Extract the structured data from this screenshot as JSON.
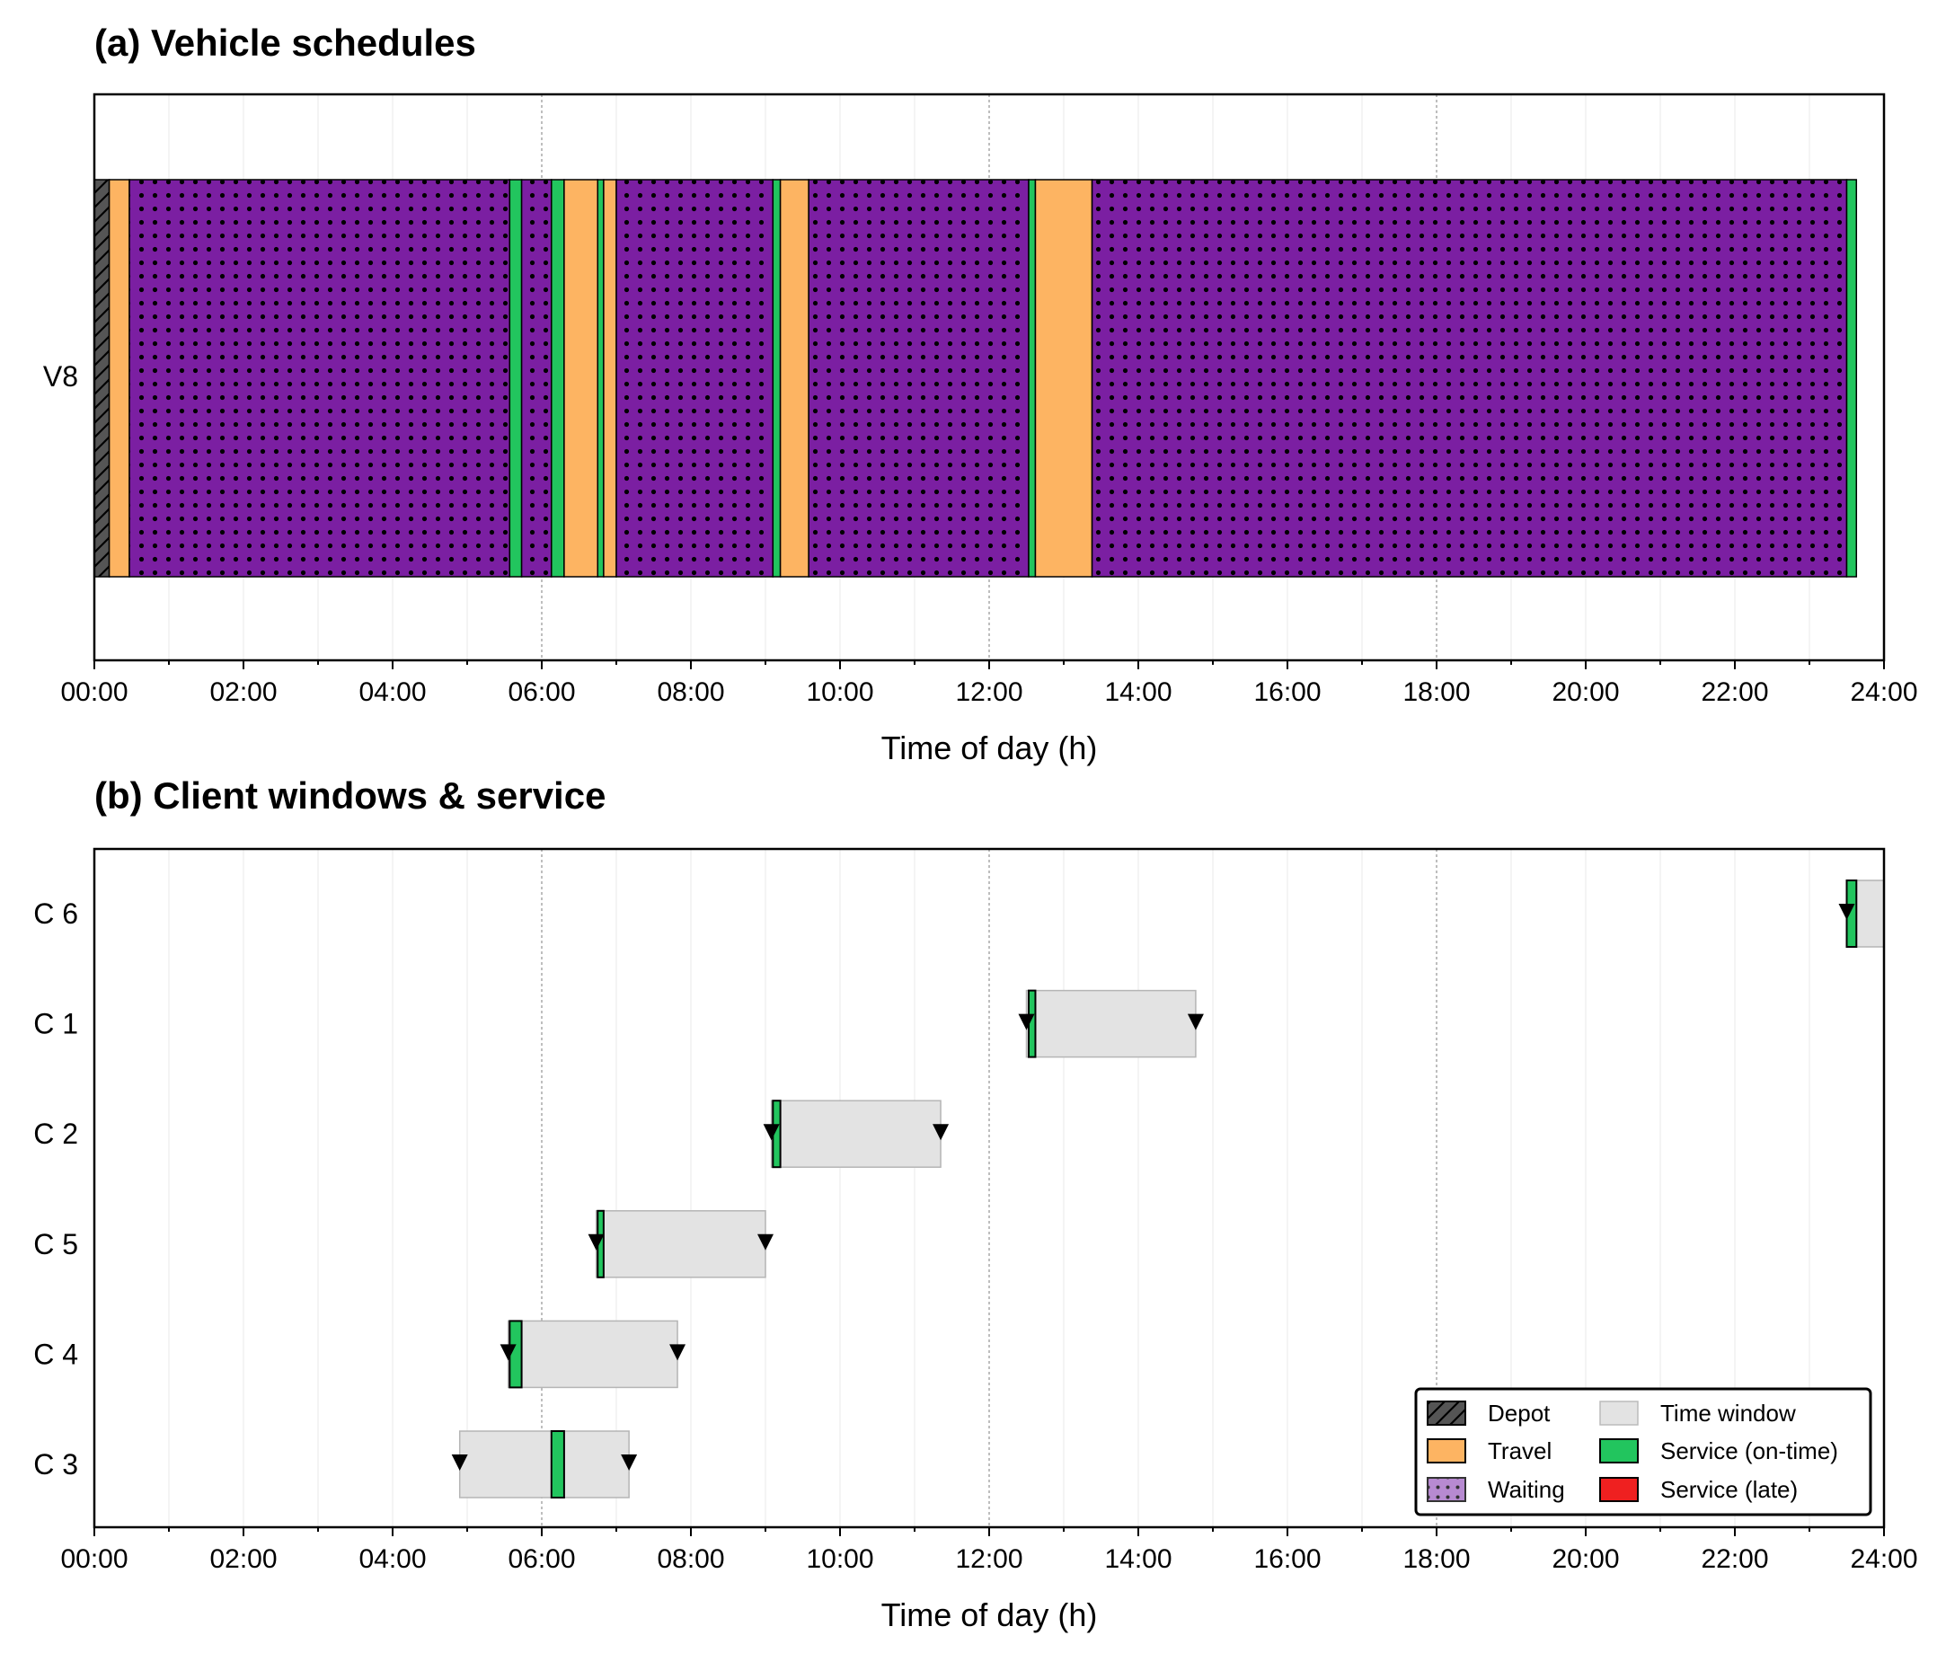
{
  "panels": {
    "a_title": "(a) Vehicle schedules",
    "b_title": "(b) Client windows & service",
    "xlabel": "Time of day (h)"
  },
  "colors": {
    "depot": "#555555",
    "travel": "#fdb462",
    "waiting": "#7b1fa2",
    "time_window": "#e3e3e3",
    "service_on_time": "#22c55e",
    "service_late": "#ef2020"
  },
  "legend": {
    "depot": "Depot",
    "travel": "Travel",
    "waiting": "Waiting",
    "time_window": "Time window",
    "service_on_time": "Service (on-time)",
    "service_late": "Service (late)"
  },
  "chart_data": [
    {
      "type": "gantt",
      "title": "(a) Vehicle schedules",
      "xlabel": "Time of day (h)",
      "xlim": [
        "00:00",
        "24:00"
      ],
      "x_ticks": [
        "00:00",
        "02:00",
        "04:00",
        "06:00",
        "08:00",
        "10:00",
        "12:00",
        "14:00",
        "16:00",
        "18:00",
        "20:00",
        "22:00",
        "24:00"
      ],
      "rows": [
        "V8"
      ],
      "segments": [
        {
          "row": "V8",
          "kind": "depot",
          "start": 0.0,
          "end": 0.2
        },
        {
          "row": "V8",
          "kind": "travel",
          "start": 0.2,
          "end": 0.47
        },
        {
          "row": "V8",
          "kind": "waiting",
          "start": 0.47,
          "end": 5.57
        },
        {
          "row": "V8",
          "kind": "service_on_time",
          "start": 5.57,
          "end": 5.73
        },
        {
          "row": "V8",
          "kind": "waiting",
          "start": 5.73,
          "end": 6.13
        },
        {
          "row": "V8",
          "kind": "service_on_time",
          "start": 6.13,
          "end": 6.3
        },
        {
          "row": "V8",
          "kind": "travel",
          "start": 6.3,
          "end": 6.75
        },
        {
          "row": "V8",
          "kind": "service_on_time",
          "start": 6.75,
          "end": 6.83
        },
        {
          "row": "V8",
          "kind": "travel",
          "start": 6.83,
          "end": 7.0
        },
        {
          "row": "V8",
          "kind": "waiting",
          "start": 7.0,
          "end": 9.1
        },
        {
          "row": "V8",
          "kind": "service_on_time",
          "start": 9.1,
          "end": 9.2
        },
        {
          "row": "V8",
          "kind": "travel",
          "start": 9.2,
          "end": 9.58
        },
        {
          "row": "V8",
          "kind": "waiting",
          "start": 9.58,
          "end": 12.53
        },
        {
          "row": "V8",
          "kind": "service_on_time",
          "start": 12.53,
          "end": 12.62
        },
        {
          "row": "V8",
          "kind": "travel",
          "start": 12.62,
          "end": 13.38
        },
        {
          "row": "V8",
          "kind": "waiting",
          "start": 13.38,
          "end": 23.5
        },
        {
          "row": "V8",
          "kind": "service_on_time",
          "start": 23.5,
          "end": 23.63
        }
      ]
    },
    {
      "type": "gantt",
      "title": "(b) Client windows & service",
      "xlabel": "Time of day (h)",
      "xlim": [
        "00:00",
        "24:00"
      ],
      "x_ticks": [
        "00:00",
        "02:00",
        "04:00",
        "06:00",
        "08:00",
        "10:00",
        "12:00",
        "14:00",
        "16:00",
        "18:00",
        "20:00",
        "22:00",
        "24:00"
      ],
      "clients": [
        {
          "label": "C 6",
          "window_start": 23.5,
          "window_end": 24.0,
          "service_start": 23.5,
          "service_end": 23.63,
          "status": "on-time"
        },
        {
          "label": "C 1",
          "window_start": 12.5,
          "window_end": 14.77,
          "service_start": 12.53,
          "service_end": 12.62,
          "status": "on-time"
        },
        {
          "label": "C 2",
          "window_start": 9.08,
          "window_end": 11.35,
          "service_start": 9.1,
          "service_end": 9.2,
          "status": "on-time"
        },
        {
          "label": "C 5",
          "window_start": 6.73,
          "window_end": 9.0,
          "service_start": 6.75,
          "service_end": 6.83,
          "status": "on-time"
        },
        {
          "label": "C 4",
          "window_start": 5.55,
          "window_end": 7.82,
          "service_start": 5.57,
          "service_end": 5.73,
          "status": "on-time"
        },
        {
          "label": "C 3",
          "window_start": 4.9,
          "window_end": 7.17,
          "service_start": 6.13,
          "service_end": 6.3,
          "status": "on-time"
        }
      ]
    }
  ]
}
